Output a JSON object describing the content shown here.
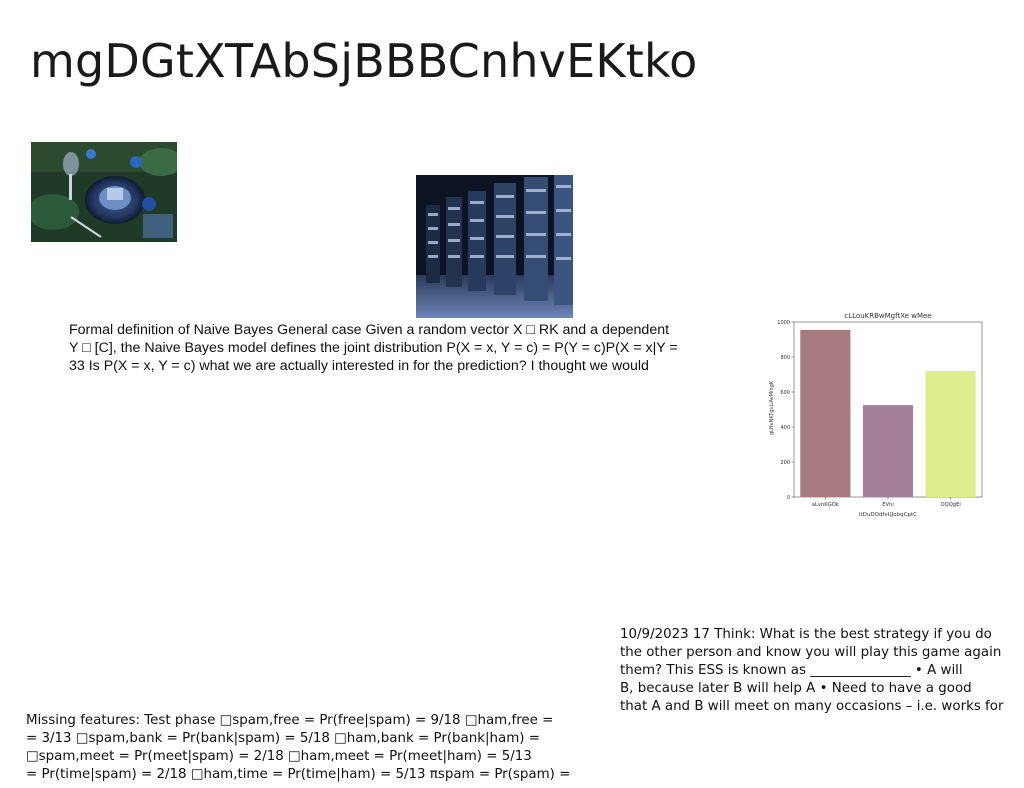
{
  "slide": {
    "title": "mgDGtXTAbSjBBBCnhvEKtko"
  },
  "images": {
    "table_setting": "table-setting-photo",
    "library": "library-photo"
  },
  "naive_bayes": {
    "lines": [
      "Formal definition of Naive Bayes General case Given a random vector X □ RK and a dependent",
      "Y □ [C], the Naive Bayes model defines the joint distribution P(X = x, Y = c) = P(Y = c)P(X = x|Y =",
      "33 Is P(X = x, Y = c) what we are actually interested in for the prediction? I thought we would"
    ]
  },
  "ess": {
    "lines": [
      "10/9/2023 17 Think: What is the best strategy if you do",
      "the other person and know you will play this game again",
      "them? This ESS is known as _______________ • A will",
      "B, because later B will help A • Need to have a good",
      "that A and B will meet on many occasions – i.e. works for"
    ]
  },
  "missing": {
    "lines": [
      "Missing features: Test phase □spam,free = Pr(free|spam) = 9/18 □ham,free =",
      "= 3/13 □spam,bank = Pr(bank|spam) = 5/18 □ham,bank = Pr(bank|ham) =",
      "□spam,meet = Pr(meet|spam) = 2/18 □ham,meet = Pr(meet|ham) = 5/13",
      "= Pr(time|spam) = 2/18 □ham,time = Pr(time|ham) = 5/13 πspam = Pr(spam) ="
    ]
  },
  "chart_data": {
    "type": "bar",
    "title": "cLLouKRBwMgftXe wMee",
    "xlabel": "ltDuDOdfvUJobqCptC",
    "ylabel": "gLNvNKTgvLiAvMihgK",
    "categories": [
      "aLvnKGOk",
      "EVni",
      "OQQgEi"
    ],
    "values": [
      955,
      525,
      720
    ],
    "colors": [
      "#a97b80",
      "#a57f9a",
      "#dfee8c"
    ],
    "ylim": [
      0,
      1000
    ],
    "yticks": [
      "0",
      "200",
      "400",
      "600",
      "800",
      "1000"
    ],
    "grid": false
  }
}
